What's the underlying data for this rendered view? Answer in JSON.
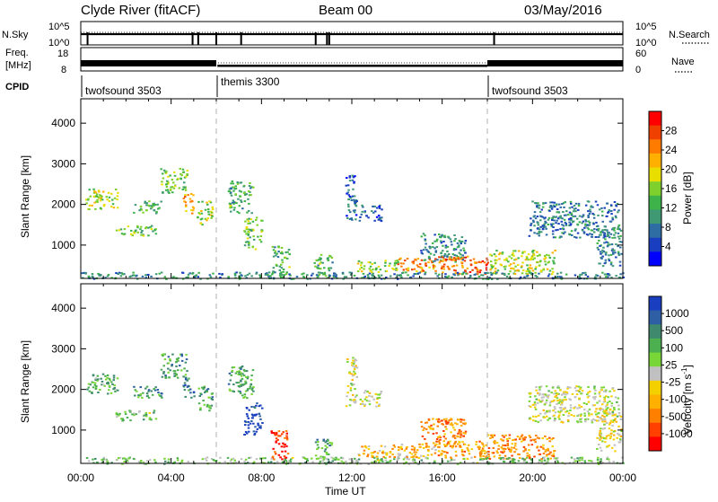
{
  "header": {
    "station": "Clyde River (fitACF)",
    "beam": "Beam 00",
    "date": "03/May/2016"
  },
  "strip": {
    "nsky_label": "N.Sky",
    "nsky_ticks": [
      "10^5",
      "10^0"
    ],
    "nsearch_label": "N.Search",
    "nsearch_ticks": [
      "10^5",
      "10^0"
    ],
    "freq_label_1": "Freq.",
    "freq_label_2": "[MHz]",
    "freq_ticks": [
      "18",
      "8"
    ],
    "nave_label": "Nave",
    "nave_ticks": [
      "60",
      "0"
    ],
    "cpid_label": "CPID",
    "cpid_segments": [
      {
        "name": "twofsound 3503",
        "start_hour": 0.0
      },
      {
        "name": "themis 3300",
        "start_hour": 6.0
      },
      {
        "name": "twofsound 3503",
        "start_hour": 18.0
      }
    ]
  },
  "chart_data": [
    {
      "type": "heatmap",
      "name": "power",
      "ylabel": "Slant Range [km]",
      "xlabel": "",
      "xlim": [
        0,
        24
      ],
      "ylim": [
        180,
        4600
      ],
      "yticks": [
        1000,
        2000,
        3000,
        4000
      ],
      "colorbar_label": "Power [dB]",
      "colorbar_ticks": [
        "28",
        "24",
        "20",
        "16",
        "12",
        "8",
        "4"
      ],
      "colorbar_colors": [
        "#ff0000",
        "#f04000",
        "#ff7b00",
        "#ffb000",
        "#e8df00",
        "#7fd02c",
        "#3db34a",
        "#3f9a74",
        "#2e6da4",
        "#1a3ec0",
        "#0000ff"
      ],
      "regions": [
        {
          "x": [
            0.2,
            1.6
          ],
          "y": [
            1900,
            2400
          ],
          "level": 0.55
        },
        {
          "x": [
            1.5,
            3.3
          ],
          "y": [
            1250,
            1500
          ],
          "level": 0.45
        },
        {
          "x": [
            2.3,
            3.6
          ],
          "y": [
            1800,
            2100
          ],
          "level": 0.4
        },
        {
          "x": [
            3.5,
            4.7
          ],
          "y": [
            2300,
            2900
          ],
          "level": 0.45
        },
        {
          "x": [
            4.5,
            5.0
          ],
          "y": [
            1800,
            2300
          ],
          "level": 0.7
        },
        {
          "x": [
            5.1,
            5.8
          ],
          "y": [
            1500,
            2100
          ],
          "level": 0.55
        },
        {
          "x": [
            6.5,
            7.6
          ],
          "y": [
            1800,
            2600
          ],
          "level": 0.4
        },
        {
          "x": [
            7.2,
            8.0
          ],
          "y": [
            900,
            1700
          ],
          "level": 0.45
        },
        {
          "x": [
            8.4,
            9.2
          ],
          "y": [
            300,
            1000
          ],
          "level": 0.4
        },
        {
          "x": [
            10.3,
            11.1
          ],
          "y": [
            200,
            800
          ],
          "level": 0.4
        },
        {
          "x": [
            11.7,
            12.2
          ],
          "y": [
            1600,
            2800
          ],
          "level": 0.2
        },
        {
          "x": [
            12.3,
            13.3
          ],
          "y": [
            1600,
            2000
          ],
          "level": 0.2
        },
        {
          "x": [
            12.2,
            14.1
          ],
          "y": [
            350,
            650
          ],
          "level": 0.5
        },
        {
          "x": [
            14.0,
            15.7
          ],
          "y": [
            350,
            700
          ],
          "level": 0.75
        },
        {
          "x": [
            15.0,
            17.0
          ],
          "y": [
            600,
            1300
          ],
          "level": 0.3
        },
        {
          "x": [
            15.8,
            18.0
          ],
          "y": [
            300,
            750
          ],
          "level": 0.8
        },
        {
          "x": [
            18.0,
            21.0
          ],
          "y": [
            300,
            900
          ],
          "level": 0.55
        },
        {
          "x": [
            19.8,
            23.8
          ],
          "y": [
            1200,
            2100
          ],
          "level": 0.25
        },
        {
          "x": [
            22.8,
            23.9
          ],
          "y": [
            500,
            1500
          ],
          "level": 0.3
        },
        {
          "x": [
            0.0,
            24.0
          ],
          "y": [
            180,
            350
          ],
          "level": 0.3
        }
      ]
    },
    {
      "type": "heatmap",
      "name": "velocity",
      "ylabel": "Slant Range [km]",
      "xlabel": "Time UT",
      "xlim": [
        0,
        24
      ],
      "ylim": [
        180,
        4600
      ],
      "yticks": [
        1000,
        2000,
        3000,
        4000
      ],
      "xticks": [
        "00:00",
        "04:00",
        "08:00",
        "12:00",
        "16:00",
        "20:00",
        "00:00"
      ],
      "colorbar_label": "Velocity [m s",
      "colorbar_label_superscript": "-1",
      "colorbar_label_closing": "]",
      "colorbar_ticks": [
        "1000",
        "500",
        "100",
        "25",
        "-25",
        "-100",
        "-500",
        "-1000"
      ],
      "colorbar_colors": [
        "#1a3ec0",
        "#2e5fa4",
        "#3f8a6e",
        "#4caf50",
        "#78d636",
        "#c0c0c0",
        "#f5d000",
        "#ffb000",
        "#ff8000",
        "#ff4000",
        "#ff0000"
      ],
      "regions": [
        {
          "x": [
            0.2,
            1.6
          ],
          "y": [
            1900,
            2400
          ],
          "level": 0.68
        },
        {
          "x": [
            1.5,
            3.3
          ],
          "y": [
            1250,
            1500
          ],
          "level": 0.6
        },
        {
          "x": [
            2.3,
            3.6
          ],
          "y": [
            1800,
            2100
          ],
          "level": 0.75
        },
        {
          "x": [
            3.5,
            4.7
          ],
          "y": [
            2300,
            2900
          ],
          "level": 0.7
        },
        {
          "x": [
            4.5,
            5.0
          ],
          "y": [
            1800,
            2300
          ],
          "level": 0.8
        },
        {
          "x": [
            5.1,
            5.8
          ],
          "y": [
            1500,
            2100
          ],
          "level": 0.72
        },
        {
          "x": [
            6.5,
            7.6
          ],
          "y": [
            1800,
            2600
          ],
          "level": 0.7
        },
        {
          "x": [
            7.2,
            8.0
          ],
          "y": [
            900,
            1700
          ],
          "level": 0.95
        },
        {
          "x": [
            8.4,
            9.2
          ],
          "y": [
            300,
            1000
          ],
          "level": 0.1
        },
        {
          "x": [
            10.3,
            11.1
          ],
          "y": [
            200,
            800
          ],
          "level": 0.7
        },
        {
          "x": [
            11.7,
            12.2
          ],
          "y": [
            1600,
            2800
          ],
          "level": 0.5
        },
        {
          "x": [
            12.3,
            13.3
          ],
          "y": [
            1600,
            2000
          ],
          "level": 0.5
        },
        {
          "x": [
            12.2,
            14.1
          ],
          "y": [
            350,
            650
          ],
          "level": 0.35
        },
        {
          "x": [
            14.0,
            15.7
          ],
          "y": [
            350,
            700
          ],
          "level": 0.35
        },
        {
          "x": [
            15.0,
            17.0
          ],
          "y": [
            600,
            1300
          ],
          "level": 0.25
        },
        {
          "x": [
            15.8,
            18.0
          ],
          "y": [
            300,
            750
          ],
          "level": 0.3
        },
        {
          "x": [
            18.0,
            21.0
          ],
          "y": [
            300,
            900
          ],
          "level": 0.25
        },
        {
          "x": [
            19.8,
            23.8
          ],
          "y": [
            1200,
            2100
          ],
          "level": 0.5
        },
        {
          "x": [
            22.8,
            23.9
          ],
          "y": [
            500,
            1500
          ],
          "level": 0.45
        },
        {
          "x": [
            0.0,
            24.0
          ],
          "y": [
            180,
            350
          ],
          "level": 0.6
        }
      ]
    }
  ]
}
